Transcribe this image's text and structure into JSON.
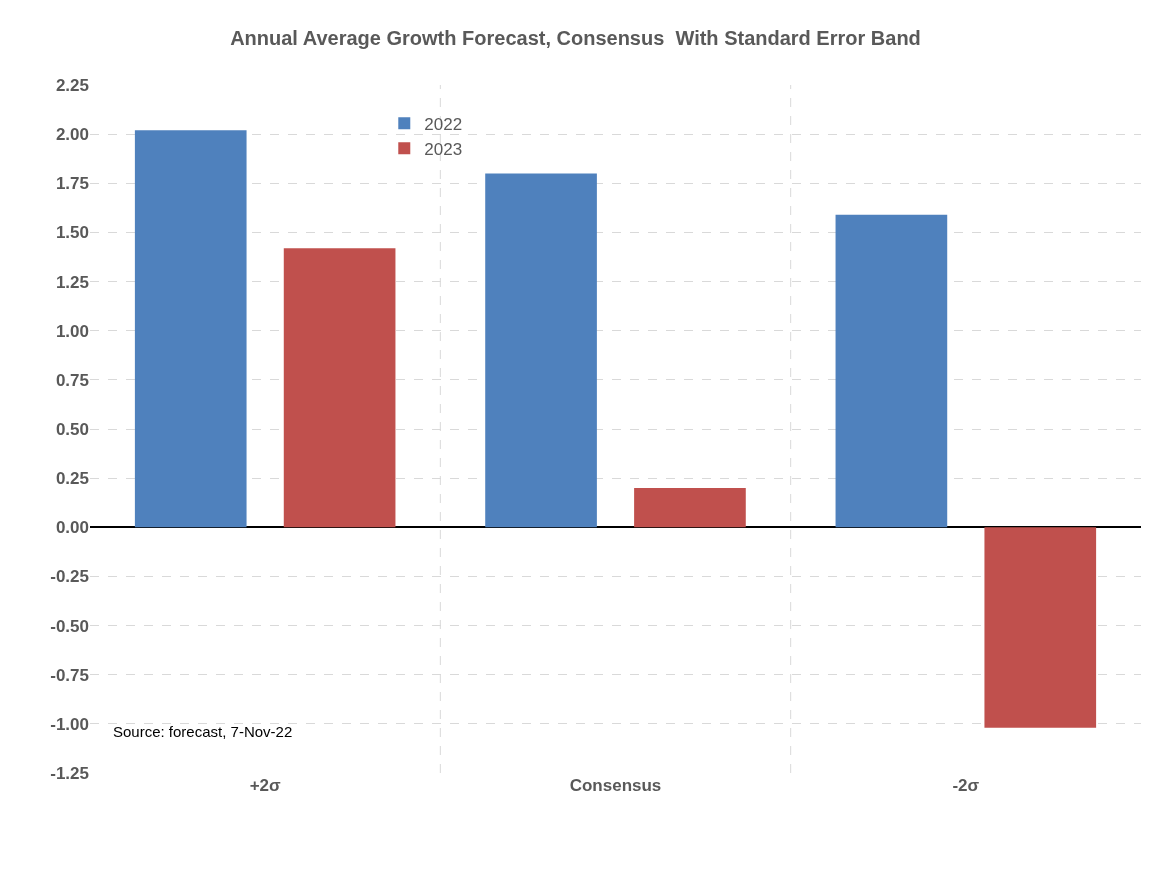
{
  "chart_data": {
    "type": "bar",
    "title": "Annual Average Growth Forecast, Consensus  With Standard Error Band",
    "categories": [
      "+2σ",
      "Consensus",
      "-2σ"
    ],
    "series": [
      {
        "name": "2022",
        "color": "#4f81bd",
        "values": [
          2.02,
          1.8,
          1.59
        ]
      },
      {
        "name": "2023",
        "color": "#c0504d",
        "values": [
          1.42,
          0.2,
          -1.02
        ]
      }
    ],
    "ylim": [
      -1.25,
      2.25
    ],
    "yticks": [
      {
        "value": -1.25,
        "label": "-1.25"
      },
      {
        "value": -1.0,
        "label": "-1.00"
      },
      {
        "value": -0.75,
        "label": "-0.75"
      },
      {
        "value": -0.5,
        "label": "-0.50"
      },
      {
        "value": -0.25,
        "label": "-0.25"
      },
      {
        "value": 0,
        "label": "0.00"
      },
      {
        "value": 0.25,
        "label": "0.25"
      },
      {
        "value": 0.5,
        "label": "0.50"
      },
      {
        "value": 0.75,
        "label": "0.75"
      },
      {
        "value": 1.0,
        "label": "1.00"
      },
      {
        "value": 1.25,
        "label": "1.25"
      },
      {
        "value": 1.5,
        "label": "1.50"
      },
      {
        "value": 1.75,
        "label": "1.75"
      },
      {
        "value": 2.0,
        "label": "2.00"
      },
      {
        "value": 2.25,
        "label": "2.25"
      }
    ],
    "grid": true,
    "legend": "top",
    "annotations": [
      "Source: forecast, 7-Nov-22"
    ]
  }
}
